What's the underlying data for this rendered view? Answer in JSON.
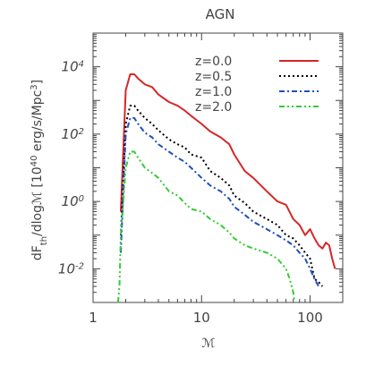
{
  "chart_data": {
    "type": "line",
    "title": "AGN",
    "xlabel": "ℳ",
    "ylabel_parts": {
      "main": "dF",
      "sub": "th",
      "mid": "/dlogℳ [10",
      "sup1": "40",
      "tail": " erg/s/Mpc",
      "sup2": "3",
      "end": "]"
    },
    "x_scale": "log",
    "y_scale": "log",
    "xlim": [
      1,
      200
    ],
    "ylim": [
      0.001,
      100000
    ],
    "x_ticks": [
      {
        "value": 1,
        "label": "1"
      },
      {
        "value": 10,
        "label": "10"
      },
      {
        "value": 100,
        "label": "100"
      }
    ],
    "y_ticks": [
      {
        "value": 0.01,
        "base": "10",
        "exp": "-2"
      },
      {
        "value": 1,
        "base": "10",
        "exp": "0"
      },
      {
        "value": 100,
        "base": "10",
        "exp": "2"
      },
      {
        "value": 10000,
        "base": "10",
        "exp": "4"
      }
    ],
    "legend_position": "top-right",
    "grid": false,
    "series": [
      {
        "name": "z=0.0",
        "color": "#d62728",
        "dash": "solid",
        "points": [
          [
            1.8,
            0.5
          ],
          [
            2.0,
            2000
          ],
          [
            2.2,
            6000
          ],
          [
            2.4,
            6000
          ],
          [
            2.6,
            4500
          ],
          [
            3.0,
            3000
          ],
          [
            3.5,
            2500
          ],
          [
            4.0,
            1500
          ],
          [
            5.0,
            900
          ],
          [
            6.0,
            700
          ],
          [
            7.0,
            500
          ],
          [
            8.0,
            350
          ],
          [
            10,
            200
          ],
          [
            12,
            120
          ],
          [
            15,
            80
          ],
          [
            18,
            50
          ],
          [
            20,
            25
          ],
          [
            25,
            8
          ],
          [
            30,
            5
          ],
          [
            40,
            2
          ],
          [
            50,
            1
          ],
          [
            60,
            0.8
          ],
          [
            70,
            0.3
          ],
          [
            80,
            0.2
          ],
          [
            90,
            0.1
          ],
          [
            100,
            0.15
          ],
          [
            110,
            0.08
          ],
          [
            120,
            0.05
          ],
          [
            130,
            0.04
          ],
          [
            140,
            0.06
          ],
          [
            150,
            0.05
          ],
          [
            160,
            0.02
          ],
          [
            170,
            0.01
          ]
        ]
      },
      {
        "name": "z=0.5",
        "color": "#000000",
        "dash": "dotted",
        "points": [
          [
            1.8,
            0.1
          ],
          [
            2.0,
            200
          ],
          [
            2.2,
            700
          ],
          [
            2.4,
            700
          ],
          [
            2.6,
            500
          ],
          [
            3.0,
            300
          ],
          [
            3.5,
            200
          ],
          [
            4.0,
            130
          ],
          [
            5.0,
            70
          ],
          [
            6.0,
            50
          ],
          [
            7.0,
            40
          ],
          [
            8.0,
            25
          ],
          [
            10,
            20
          ],
          [
            12,
            8
          ],
          [
            15,
            5
          ],
          [
            18,
            3
          ],
          [
            20,
            1.5
          ],
          [
            25,
            0.9
          ],
          [
            30,
            0.5
          ],
          [
            40,
            0.3
          ],
          [
            50,
            0.2
          ],
          [
            60,
            0.1
          ],
          [
            70,
            0.08
          ],
          [
            80,
            0.05
          ],
          [
            90,
            0.03
          ],
          [
            100,
            0.02
          ],
          [
            110,
            0.005
          ],
          [
            120,
            0.004
          ],
          [
            130,
            0.003
          ]
        ]
      },
      {
        "name": "z=1.0",
        "color": "#1f4fbf",
        "dash": "dashdot",
        "points": [
          [
            1.8,
            0.03
          ],
          [
            2.0,
            100
          ],
          [
            2.2,
            300
          ],
          [
            2.4,
            300
          ],
          [
            2.6,
            200
          ],
          [
            3.0,
            110
          ],
          [
            3.5,
            80
          ],
          [
            4.0,
            50
          ],
          [
            5.0,
            30
          ],
          [
            6.0,
            20
          ],
          [
            7.0,
            15
          ],
          [
            8.0,
            10
          ],
          [
            10,
            5
          ],
          [
            12,
            3
          ],
          [
            15,
            2
          ],
          [
            18,
            1.2
          ],
          [
            20,
            0.7
          ],
          [
            25,
            0.4
          ],
          [
            30,
            0.25
          ],
          [
            40,
            0.15
          ],
          [
            50,
            0.1
          ],
          [
            60,
            0.07
          ],
          [
            70,
            0.05
          ],
          [
            80,
            0.03
          ],
          [
            90,
            0.02
          ],
          [
            100,
            0.01
          ],
          [
            110,
            0.005
          ],
          [
            120,
            0.003
          ]
        ]
      },
      {
        "name": "z=2.0",
        "color": "#33cc33",
        "dash": "dashdotdot",
        "points": [
          [
            1.7,
            0.001
          ],
          [
            1.75,
            0.003
          ],
          [
            1.8,
            0.1
          ],
          [
            2.0,
            10
          ],
          [
            2.2,
            30
          ],
          [
            2.4,
            30
          ],
          [
            2.6,
            20
          ],
          [
            3.0,
            10
          ],
          [
            3.5,
            7
          ],
          [
            4.0,
            5
          ],
          [
            5.0,
            2
          ],
          [
            6.0,
            1.5
          ],
          [
            7.0,
            0.9
          ],
          [
            8.0,
            0.6
          ],
          [
            10,
            0.5
          ],
          [
            12,
            0.3
          ],
          [
            15,
            0.2
          ],
          [
            18,
            0.12
          ],
          [
            20,
            0.08
          ],
          [
            25,
            0.05
          ],
          [
            30,
            0.04
          ],
          [
            40,
            0.03
          ],
          [
            50,
            0.02
          ],
          [
            60,
            0.01
          ],
          [
            65,
            0.005
          ],
          [
            70,
            0.002
          ],
          [
            72,
            0.001
          ]
        ]
      }
    ]
  }
}
